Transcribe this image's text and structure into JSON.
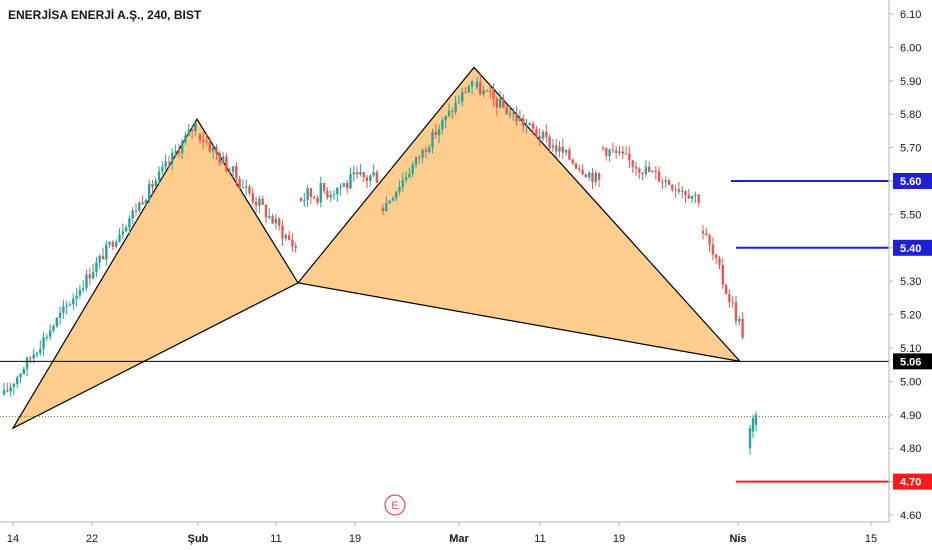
{
  "header": {
    "title": "ENERJİSA ENERJİ A.Ş., 240, BIST"
  },
  "event_marker": {
    "label": "E",
    "color": "#e04d5c"
  },
  "colors": {
    "up": "#26a69a",
    "down": "#ef5350",
    "pattern_fill": "#ffc67a",
    "blue_line": "#1f1fd6",
    "red_line": "#ff1a1a",
    "current_line": "#000000",
    "dotted_line": "#5c8a2e"
  },
  "chart_data": {
    "type": "candlestick",
    "title": "ENERJİSA ENERJİ A.Ş., 240, BIST",
    "yaxis": {
      "ticks": [
        "6.10",
        "6.00",
        "5.90",
        "5.80",
        "5.70",
        "5.60",
        "5.50",
        "5.40",
        "5.30",
        "5.20",
        "5.10",
        "5.00",
        "4.90",
        "4.80",
        "4.70",
        "4.60"
      ],
      "range": [
        4.58,
        6.14
      ],
      "position": "right"
    },
    "xaxis": {
      "ticks": [
        {
          "label": "14",
          "bold": false
        },
        {
          "label": "22",
          "bold": false
        },
        {
          "label": "Şub",
          "bold": true
        },
        {
          "label": "11",
          "bold": false
        },
        {
          "label": "19",
          "bold": false
        },
        {
          "label": "Mar",
          "bold": true
        },
        {
          "label": "11",
          "bold": false
        },
        {
          "label": "19",
          "bold": false
        },
        {
          "label": "Nis",
          "bold": true
        },
        {
          "label": "15",
          "bold": false
        }
      ]
    },
    "price_lines": [
      {
        "value": 5.6,
        "label": "5.60",
        "color": "#1f1fd6"
      },
      {
        "value": 5.4,
        "label": "5.40",
        "color": "#1f1fd6"
      },
      {
        "value": 5.06,
        "label": "5.06",
        "color": "#000000"
      },
      {
        "value": 4.7,
        "label": "4.70",
        "color": "#ff1a1a"
      }
    ],
    "dotted_line": {
      "value": 4.895
    },
    "harmonic_pattern": {
      "X": 4.86,
      "A": 5.785,
      "B": 5.295,
      "C": 5.94,
      "D": 5.06
    },
    "candles_approx": {
      "segment1_jan": {
        "from": 4.9,
        "to": 5.78
      },
      "segment2_feb": {
        "from": 5.78,
        "to": 5.3
      },
      "segment3_feb_mar": {
        "from": 5.3,
        "to": 5.93
      },
      "segment4_mar_apr": {
        "from": 5.93,
        "to": 5.07
      },
      "after_gap": {
        "from": 4.79,
        "to": 4.89
      }
    }
  }
}
